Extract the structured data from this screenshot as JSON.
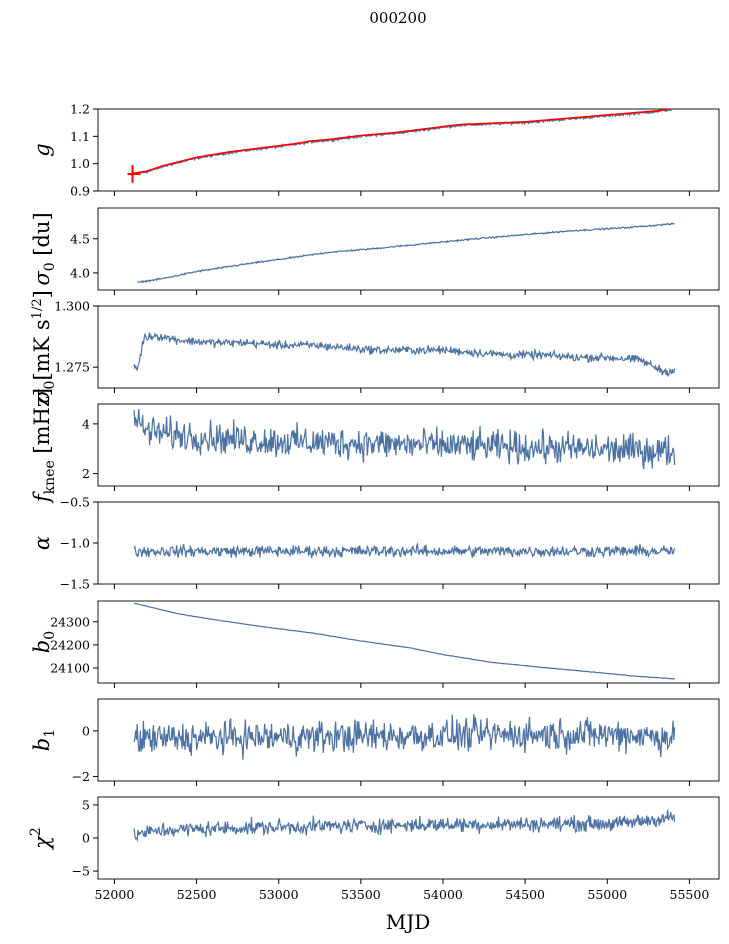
{
  "suptitle": "000200",
  "chart_data": {
    "type": "line",
    "xlabel": "MJD",
    "xlim": [
      51900,
      55680
    ],
    "xticks": [
      52000,
      52500,
      53000,
      53500,
      54000,
      54500,
      55000,
      55500
    ],
    "xtick_labels": [
      "52000",
      "52500",
      "53000",
      "53500",
      "54000",
      "54500",
      "55000",
      "55500"
    ],
    "colors": {
      "series": "#4c72a4",
      "fit": "#ff0000"
    },
    "panels": [
      {
        "id": "g",
        "ylabel": "g",
        "ylim": [
          0.9,
          1.2
        ],
        "yticks": [
          0.9,
          1.0,
          1.1,
          1.2
        ],
        "ytick_labels": [
          "0.9",
          "1.0",
          "1.1",
          "1.2"
        ],
        "series": [
          {
            "name": "gain",
            "x": [
              52100,
              52200,
              52300,
              52500,
              52700,
              52900,
              53100,
              53200,
              53300,
              53500,
              53700,
              53900,
              54100,
              54300,
              54500,
              54700,
              54900,
              55100,
              55300,
              55410
            ],
            "y": [
              0.96,
              0.97,
              0.99,
              1.02,
              1.04,
              1.055,
              1.07,
              1.08,
              1.085,
              1.1,
              1.11,
              1.125,
              1.14,
              1.145,
              1.15,
              1.16,
              1.17,
              1.18,
              1.19,
              1.2
            ],
            "noise": 0.003
          }
        ],
        "fit": {
          "name": "fit",
          "x": [
            52100,
            52200,
            52300,
            52500,
            52700,
            52900,
            53100,
            53200,
            53300,
            53500,
            53700,
            53900,
            54100,
            54300,
            54500,
            54700,
            54900,
            55100,
            55300,
            55410
          ],
          "y": [
            0.963,
            0.973,
            0.993,
            1.023,
            1.043,
            1.058,
            1.073,
            1.083,
            1.088,
            1.103,
            1.113,
            1.128,
            1.143,
            1.148,
            1.153,
            1.163,
            1.173,
            1.183,
            1.193,
            1.203
          ],
          "spike": {
            "x": 52110,
            "ylow": 0.93,
            "yhigh": 0.995
          }
        }
      },
      {
        "id": "sigma0_du",
        "ylabel": "σ0 [du]",
        "ylim": [
          3.75,
          4.95
        ],
        "yticks": [
          4.0,
          4.5
        ],
        "ytick_labels": [
          "4.0",
          "4.5"
        ],
        "series": [
          {
            "name": "sigma0_du",
            "x": [
              52140,
              52300,
              52500,
              52800,
              53100,
              53300,
              53600,
              53900,
              54200,
              54500,
              54800,
              55100,
              55410
            ],
            "y": [
              3.86,
              3.92,
              4.02,
              4.13,
              4.23,
              4.3,
              4.36,
              4.43,
              4.5,
              4.56,
              4.62,
              4.66,
              4.72
            ],
            "noise": 0.008
          }
        ]
      },
      {
        "id": "sigma0_mk",
        "ylabel": "σ0[mK s1/2]",
        "ylim": [
          1.2665,
          1.3
        ],
        "yticks": [
          1.275,
          1.3
        ],
        "ytick_labels": [
          "1.275",
          "1.300"
        ],
        "series": [
          {
            "name": "sigma0_mk",
            "x": [
              52120,
              52140,
              52180,
              52250,
              52400,
              52600,
              52800,
              53000,
              53200,
              53400,
              53600,
              53800,
              54000,
              54200,
              54400,
              54600,
              54800,
              55000,
              55200,
              55350,
              55410
            ],
            "y": [
              1.276,
              1.274,
              1.287,
              1.288,
              1.286,
              1.285,
              1.285,
              1.284,
              1.284,
              1.283,
              1.282,
              1.282,
              1.282,
              1.281,
              1.28,
              1.28,
              1.279,
              1.279,
              1.278,
              1.273,
              1.274
            ],
            "noise": 0.0012
          }
        ]
      },
      {
        "id": "fknee",
        "ylabel": "fknee [mHz]",
        "ylim": [
          1.5,
          4.8
        ],
        "yticks": [
          2,
          4
        ],
        "ytick_labels": [
          "2",
          "4"
        ],
        "series": [
          {
            "name": "fknee",
            "x": [
              52120,
              52200,
              52400,
              52600,
              52800,
              53000,
              53300,
              53600,
              53900,
              54200,
              54500,
              54800,
              55100,
              55410
            ],
            "y": [
              4.2,
              3.7,
              3.55,
              3.45,
              3.35,
              3.3,
              3.25,
              3.2,
              3.15,
              3.1,
              3.05,
              3.0,
              2.95,
              2.9
            ],
            "noise": 0.45
          }
        ]
      },
      {
        "id": "alpha",
        "ylabel": "α",
        "ylim": [
          -1.5,
          -0.5
        ],
        "yticks": [
          -1.5,
          -1.0,
          -0.5
        ],
        "ytick_labels": [
          "−1.5",
          "−1.0",
          "−0.5"
        ],
        "series": [
          {
            "name": "alpha",
            "x": [
              52120,
              52700,
              53300,
              53900,
              54500,
              55100,
              55410
            ],
            "y": [
              -1.1,
              -1.1,
              -1.1,
              -1.1,
              -1.1,
              -1.1,
              -1.1
            ],
            "noise": 0.05
          }
        ]
      },
      {
        "id": "b0",
        "ylabel": "b0",
        "ylim": [
          24035,
          24390
        ],
        "yticks": [
          24100,
          24200,
          24300
        ],
        "ytick_labels": [
          "24100",
          "24200",
          "24300"
        ],
        "series": [
          {
            "name": "b0",
            "x": [
              52120,
              52200,
              52400,
              52600,
              52900,
              53200,
              53500,
              53800,
              54000,
              54300,
              54600,
              54900,
              55200,
              55410
            ],
            "y": [
              24380,
              24367,
              24333,
              24310,
              24279,
              24252,
              24217,
              24187,
              24158,
              24124,
              24103,
              24083,
              24063,
              24053
            ],
            "noise": 0.8
          }
        ]
      },
      {
        "id": "b1",
        "ylabel": "b1",
        "ylim": [
          -2.2,
          1.4
        ],
        "yticks": [
          -2,
          0
        ],
        "ytick_labels": [
          "−2",
          "0"
        ],
        "series": [
          {
            "name": "b1",
            "x": [
              52120,
              52700,
              53300,
              53900,
              54500,
              55100,
              55410
            ],
            "y": [
              -0.35,
              -0.3,
              -0.25,
              -0.2,
              -0.15,
              -0.15,
              -0.3
            ],
            "noise": 0.5
          }
        ]
      },
      {
        "id": "chi2",
        "ylabel": "χ2",
        "ylim": [
          -6.2,
          6.2
        ],
        "yticks": [
          -5,
          0,
          5
        ],
        "ytick_labels": [
          "−5",
          "0",
          "5"
        ],
        "series": [
          {
            "name": "chi2",
            "x": [
              52120,
              52300,
              52700,
              53300,
              53900,
              54500,
              55100,
              55410
            ],
            "y": [
              0.5,
              1.2,
              1.5,
              1.8,
              2.0,
              2.1,
              2.2,
              3.2
            ],
            "noise": 0.8
          }
        ]
      }
    ]
  }
}
